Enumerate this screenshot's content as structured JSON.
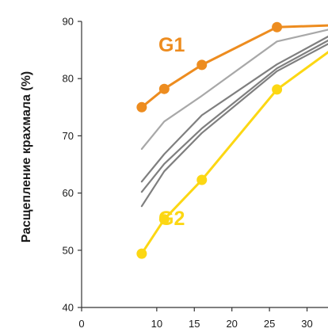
{
  "chart_data": {
    "type": "line",
    "ylabel": "Расщепление крахмала (%)",
    "xlabel": "",
    "xlim": [
      0,
      33
    ],
    "ylim": [
      40,
      90
    ],
    "xticks": [
      0,
      10,
      15,
      20,
      25,
      30
    ],
    "yticks": [
      40,
      50,
      60,
      70,
      80,
      90
    ],
    "grid": false,
    "colors": {
      "G1": "#ed8c1f",
      "G2": "#fcd713",
      "gray_light": "#a8a8a8",
      "gray_dark": "#7f7f7f",
      "axis": "#333333"
    },
    "series": [
      {
        "name": "G1",
        "key": "G1",
        "markers": true,
        "x": [
          8,
          11,
          16,
          26,
          33
        ],
        "y": [
          75,
          78.2,
          82.4,
          89,
          89.3
        ]
      },
      {
        "name": "G2",
        "key": "G2",
        "markers": true,
        "x": [
          8,
          11,
          16,
          26,
          33
        ],
        "y": [
          49.4,
          55.4,
          62.3,
          78.1,
          84.8
        ]
      },
      {
        "key": "gray_light",
        "markers": false,
        "x": [
          8,
          11,
          16,
          26,
          33
        ],
        "y": [
          67.7,
          72.5,
          77,
          86.5,
          88.6
        ]
      },
      {
        "key": "gray_dark",
        "markers": false,
        "x": [
          8,
          11,
          16,
          26,
          33
        ],
        "y": [
          62,
          66.8,
          73.6,
          82.5,
          87.5
        ]
      },
      {
        "key": "gray_dark",
        "markers": false,
        "x": [
          8,
          11,
          16,
          26,
          33
        ],
        "y": [
          60.2,
          65.1,
          71.3,
          81.8,
          86.8
        ]
      },
      {
        "key": "gray_dark",
        "markers": false,
        "x": [
          8,
          11,
          16,
          26,
          33
        ],
        "y": [
          57.7,
          63.8,
          70.5,
          81.3,
          86.2
        ]
      }
    ]
  }
}
